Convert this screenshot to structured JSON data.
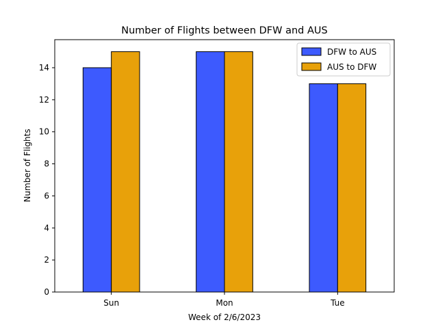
{
  "chart_data": {
    "type": "bar",
    "title": "Number of Flights between DFW and AUS",
    "xlabel": "Week of 2/6/2023",
    "ylabel": "Number of Flights",
    "categories": [
      "Sun",
      "Mon",
      "Tue"
    ],
    "series": [
      {
        "name": "DFW to AUS",
        "values": [
          14,
          15,
          13
        ],
        "color": "#3d5afe"
      },
      {
        "name": "AUS to DFW",
        "values": [
          15,
          15,
          13
        ],
        "color": "#e8a10a"
      }
    ],
    "ylim": [
      0,
      15.75
    ],
    "yticks": [
      0,
      2,
      4,
      6,
      8,
      10,
      12,
      14
    ],
    "grid": false,
    "legend_position": "top-right"
  }
}
